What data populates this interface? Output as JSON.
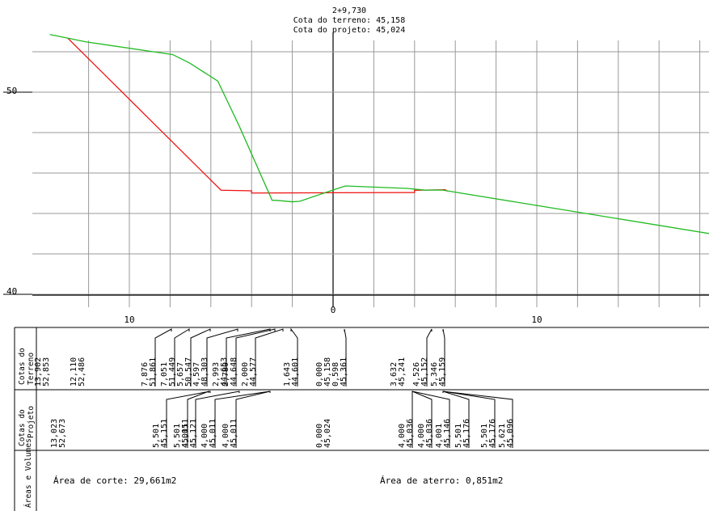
{
  "station": {
    "label": "2+9,730",
    "terrain_elevation": "Cota do terreno: 45,158",
    "project_elevation": "Cota do projeto: 45,024"
  },
  "colors": {
    "terrain": "#22bb22",
    "project": "#ee1111",
    "grid": "#999999",
    "ink": "#000000"
  },
  "axes": {
    "y_tick_labels": [
      "50",
      "40"
    ],
    "x_tick_labels": [
      "10",
      "0",
      "10"
    ]
  },
  "chart_data": {
    "type": "line",
    "x_range": [
      -14,
      18.5
    ],
    "y_range": [
      40,
      53
    ],
    "series": [
      {
        "points": [
          [
            -13.902,
            52.853
          ],
          [
            -12.11,
            52.486
          ],
          [
            -7.876,
            51.861
          ],
          [
            -7.051,
            51.449
          ],
          [
            -5.657,
            50.547
          ],
          [
            -4.597,
            48.303
          ],
          [
            -2.993,
            44.653
          ],
          [
            -2.78,
            44.648
          ],
          [
            -2.0,
            44.577
          ],
          [
            -1.643,
            44.601
          ],
          [
            0.0,
            45.158
          ],
          [
            0.598,
            45.361
          ],
          [
            3.632,
            45.241
          ],
          [
            4.526,
            45.152
          ],
          [
            5.346,
            45.159
          ],
          [
            18.5,
            43.0
          ]
        ]
      },
      {
        "points": [
          [
            -13.023,
            52.673
          ],
          [
            -5.501,
            45.151
          ],
          [
            -4.001,
            45.121
          ],
          [
            -4.0,
            45.011
          ],
          [
            0.0,
            45.024
          ],
          [
            4.0,
            45.036
          ],
          [
            4.001,
            45.146
          ],
          [
            5.501,
            45.176
          ],
          [
            5.621,
            45.096
          ]
        ]
      }
    ]
  },
  "table": {
    "row_terrain_title": [
      "Cotas do",
      "Terreno"
    ],
    "row_project_title": [
      "Cotas do",
      "Projeto"
    ],
    "row_areas_title": "Áreas e Volumes",
    "terrain_labels": [
      {
        "offset": "13,902",
        "elev": "52,853"
      },
      {
        "offset": "12,110",
        "elev": "52,486"
      },
      {
        "offset": "7,876",
        "elev": "51,861"
      },
      {
        "offset": "7,051",
        "elev": "51,449"
      },
      {
        "offset": "5,657",
        "elev": "50,547"
      },
      {
        "offset": "4,597",
        "elev": "48,303"
      },
      {
        "offset": "2,993",
        "elev": "44,653"
      },
      {
        "offset": "2,780",
        "elev": "44,648"
      },
      {
        "offset": "2,000",
        "elev": "44,577"
      },
      {
        "offset": "1,643",
        "elev": "44,601"
      },
      {
        "offset": "0,000",
        "elev": "45,158"
      },
      {
        "offset": "0,598",
        "elev": "45,361"
      },
      {
        "offset": "3,632",
        "elev": "45,241"
      },
      {
        "offset": "4,526",
        "elev": "45,152"
      },
      {
        "offset": "5,346",
        "elev": "45,159"
      }
    ],
    "project_labels": [
      {
        "offset": "13,023",
        "elev": "52,673"
      },
      {
        "offset": "5,501",
        "elev": "45,151"
      },
      {
        "offset": "5,501",
        "elev": "45,151"
      },
      {
        "offset": "4,001",
        "elev": "45,121"
      },
      {
        "offset": "4,000",
        "elev": "45,011"
      },
      {
        "offset": "4,000",
        "elev": "45,011"
      },
      {
        "offset": "0,000",
        "elev": "45,024"
      },
      {
        "offset": "4,000",
        "elev": "45,036"
      },
      {
        "offset": "4,000",
        "elev": "45,036"
      },
      {
        "offset": "4,001",
        "elev": "45,146"
      },
      {
        "offset": "5,501",
        "elev": "45,176"
      },
      {
        "offset": "5,501",
        "elev": "45,176"
      },
      {
        "offset": "5,621",
        "elev": "45,096"
      }
    ],
    "cut_area": "Área de corte: 29,661m2",
    "fill_area": "Área de aterro: 0,851m2"
  }
}
